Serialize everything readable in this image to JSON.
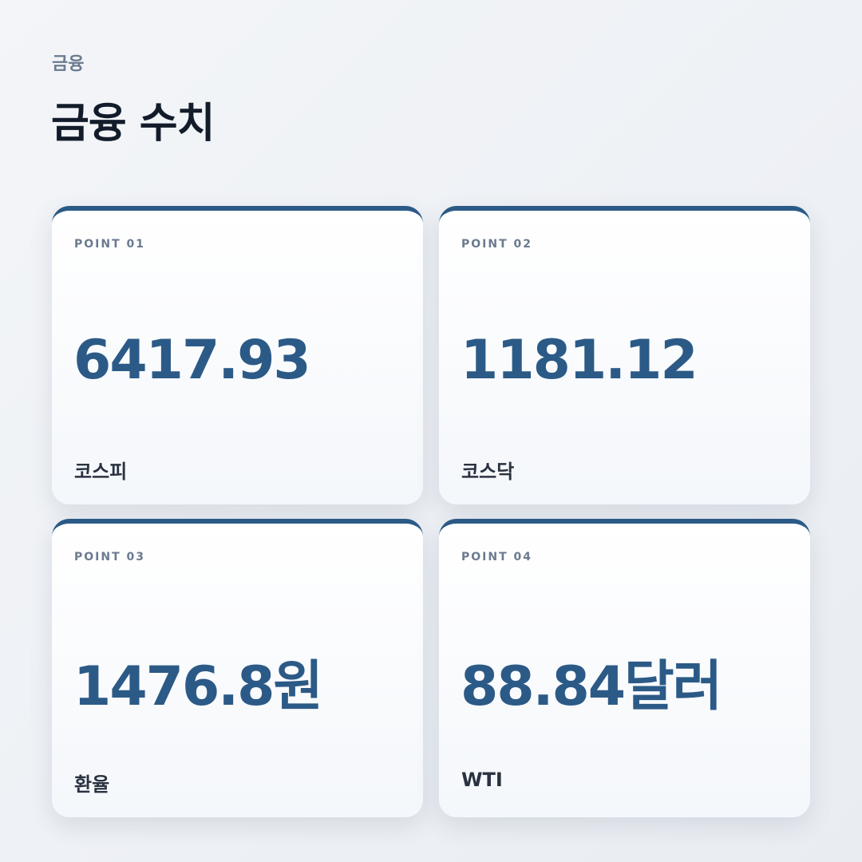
{
  "header": {
    "eyebrow": "금융",
    "title": "금융 수치"
  },
  "accent_color": "#2c5a87",
  "cards": [
    {
      "point": "POINT 01",
      "value": "6417.93",
      "label": "코스피"
    },
    {
      "point": "POINT 02",
      "value": "1181.12",
      "label": "코스닥"
    },
    {
      "point": "POINT 03",
      "value": "1476.8원",
      "label": "환율"
    },
    {
      "point": "POINT 04",
      "value": "88.84달러",
      "label": "WTI"
    }
  ]
}
